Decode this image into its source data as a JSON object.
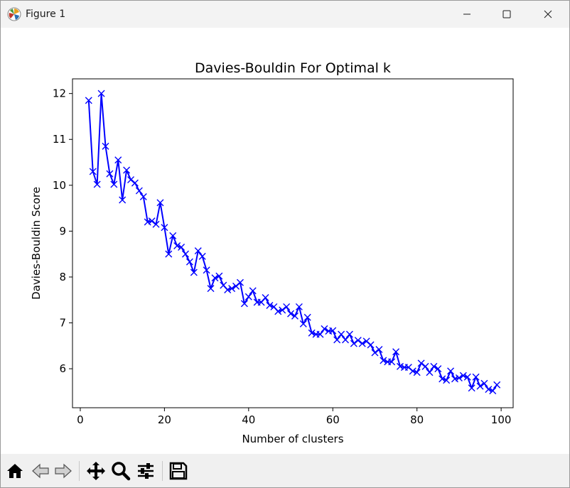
{
  "window": {
    "title": "Figure 1"
  },
  "toolbar": {
    "buttons": [
      "home-icon",
      "back-icon",
      "forward-icon",
      "pan-icon",
      "zoom-icon",
      "configure-subplots-icon",
      "save-icon"
    ]
  },
  "chart_data": {
    "type": "line",
    "title": "Davies-Bouldin For Optimal k",
    "xlabel": "Number of clusters",
    "ylabel": "Davies-Bouldin Score",
    "xlim": [
      -1.85,
      102.85
    ],
    "ylim": [
      5.15,
      12.32
    ],
    "xticks": [
      0,
      20,
      40,
      60,
      80,
      100
    ],
    "yticks": [
      6,
      7,
      8,
      9,
      10,
      11,
      12
    ],
    "grid": false,
    "marker": "x",
    "color": "#0000ff",
    "series": [
      {
        "x": [
          2,
          3,
          4,
          5,
          6,
          7,
          8,
          9,
          10,
          11,
          12,
          13,
          14,
          15,
          16,
          17,
          18,
          19,
          20,
          21,
          22,
          23,
          24,
          25,
          26,
          27,
          28,
          29,
          30,
          31,
          32,
          33,
          34,
          35,
          36,
          37,
          38,
          39,
          40,
          41,
          42,
          43,
          44,
          45,
          46,
          47,
          48,
          49,
          50,
          51,
          52,
          53,
          54,
          55,
          56,
          57,
          58,
          59,
          60,
          61,
          62,
          63,
          64,
          65,
          66,
          67,
          68,
          69,
          70,
          71,
          72,
          73,
          74,
          75,
          76,
          77,
          78,
          79,
          80,
          81,
          82,
          83,
          84,
          85,
          86,
          87,
          88,
          89,
          90,
          91,
          92,
          93,
          94,
          95,
          96,
          97,
          98,
          99
        ],
        "y": [
          11.85,
          10.3,
          10.02,
          12.0,
          10.85,
          10.25,
          10.02,
          10.55,
          9.68,
          10.33,
          10.12,
          10.05,
          9.88,
          9.75,
          9.2,
          9.22,
          9.15,
          9.62,
          9.08,
          8.5,
          8.9,
          8.68,
          8.65,
          8.5,
          8.33,
          8.1,
          8.57,
          8.45,
          8.15,
          7.75,
          7.98,
          8.02,
          7.82,
          7.72,
          7.75,
          7.8,
          7.88,
          7.42,
          7.57,
          7.7,
          7.45,
          7.45,
          7.55,
          7.38,
          7.35,
          7.25,
          7.28,
          7.35,
          7.2,
          7.15,
          7.35,
          6.98,
          7.12,
          6.78,
          6.75,
          6.75,
          6.87,
          6.82,
          6.83,
          6.63,
          6.75,
          6.63,
          6.75,
          6.55,
          6.62,
          6.55,
          6.6,
          6.52,
          6.35,
          6.42,
          6.18,
          6.15,
          6.15,
          6.37,
          6.05,
          6.03,
          6.03,
          5.95,
          5.92,
          6.12,
          6.05,
          5.92,
          6.05,
          6.0,
          5.78,
          5.75,
          5.95,
          5.78,
          5.8,
          5.85,
          5.82,
          5.58,
          5.82,
          5.62,
          5.68,
          5.55,
          5.52,
          5.65
        ]
      }
    ]
  }
}
